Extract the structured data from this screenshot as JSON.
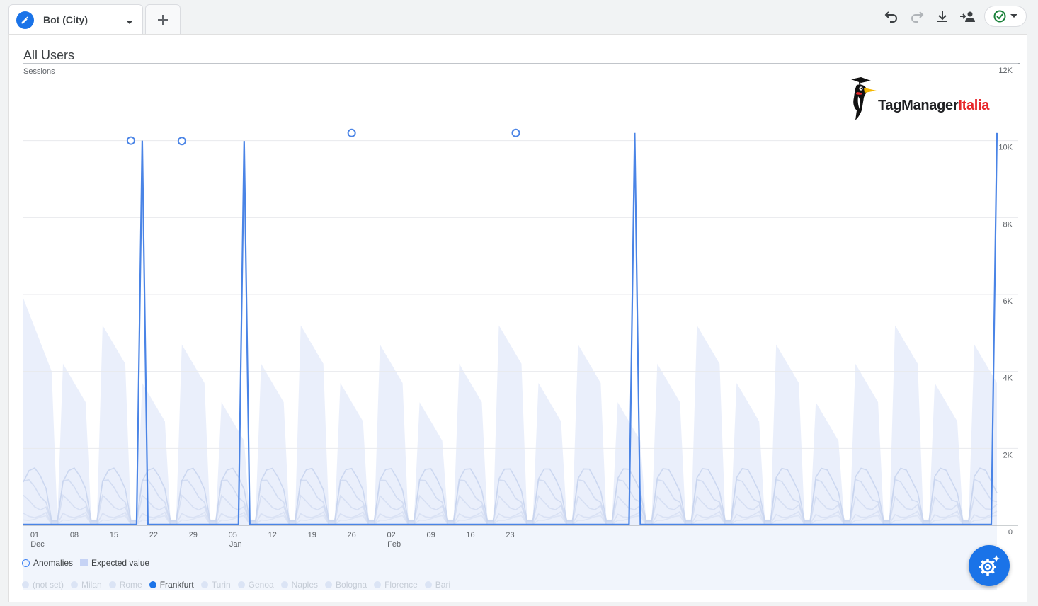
{
  "tab": {
    "title": "Bot (City)"
  },
  "segment": "All Users",
  "metric": "Sessions",
  "brand": {
    "name_black": "TagManager",
    "name_red": "Italia"
  },
  "legend": {
    "anomalies": "Anomalies",
    "expected": "Expected value"
  },
  "cities": [
    {
      "name": "(not set)",
      "active": false
    },
    {
      "name": "Milan",
      "active": false
    },
    {
      "name": "Rome",
      "active": false
    },
    {
      "name": "Frankfurt",
      "active": true
    },
    {
      "name": "Turin",
      "active": false
    },
    {
      "name": "Genoa",
      "active": false
    },
    {
      "name": "Naples",
      "active": false
    },
    {
      "name": "Bologna",
      "active": false
    },
    {
      "name": "Florence",
      "active": false
    },
    {
      "name": "Bari",
      "active": false
    }
  ],
  "colors": {
    "accent": "#1a73e8",
    "series": "#4a84e6",
    "band": "#e6ecfa",
    "faded": "#c8d4ee"
  },
  "chart_data": {
    "type": "line",
    "ylim": [
      0,
      12000
    ],
    "y_ticks": [
      "0",
      "2K",
      "4K",
      "6K",
      "8K",
      "10K",
      "12K"
    ],
    "x_ticks": [
      {
        "day": "01",
        "month": "Dec"
      },
      {
        "day": "08",
        "month": ""
      },
      {
        "day": "15",
        "month": ""
      },
      {
        "day": "22",
        "month": ""
      },
      {
        "day": "29",
        "month": ""
      },
      {
        "day": "05",
        "month": "Jan"
      },
      {
        "day": "12",
        "month": ""
      },
      {
        "day": "19",
        "month": ""
      },
      {
        "day": "26",
        "month": ""
      },
      {
        "day": "02",
        "month": "Feb"
      },
      {
        "day": "09",
        "month": ""
      },
      {
        "day": "16",
        "month": ""
      },
      {
        "day": "23",
        "month": ""
      }
    ],
    "x_start": "2024-11-29",
    "series": [
      {
        "name": "Frankfurt",
        "values": [
          20,
          20,
          20,
          20,
          20,
          20,
          20,
          20,
          20,
          20,
          20,
          20,
          20,
          20,
          20,
          20,
          20,
          20,
          20,
          20,
          20,
          10000,
          20,
          20,
          20,
          20,
          20,
          20,
          20,
          20,
          20,
          20,
          20,
          20,
          20,
          20,
          20,
          20,
          20,
          9990,
          20,
          20,
          20,
          20,
          20,
          20,
          20,
          20,
          20,
          20,
          20,
          20,
          20,
          20,
          20,
          20,
          20,
          20,
          20,
          20,
          20,
          20,
          20,
          20,
          20,
          20,
          20,
          20,
          20,
          20,
          20,
          20,
          20,
          20,
          20,
          20,
          20,
          20,
          20,
          20,
          20,
          20,
          20,
          20,
          20,
          20,
          20,
          20,
          20,
          20,
          20,
          20,
          20,
          20,
          20,
          20,
          20,
          20,
          20,
          20,
          20,
          20,
          20,
          20,
          20,
          20,
          20,
          20,
          10200,
          20,
          20,
          20,
          20,
          20,
          20,
          20,
          20,
          20,
          20,
          20,
          20,
          20,
          20,
          20,
          20,
          20,
          20,
          20,
          20,
          20,
          20,
          20,
          20,
          20,
          20,
          20,
          20,
          20,
          20,
          20,
          20,
          20,
          20,
          20,
          20,
          20,
          20,
          20,
          20,
          20,
          20,
          20,
          20,
          20,
          20,
          20,
          20,
          20,
          20,
          20,
          20,
          20,
          20,
          20,
          20,
          20,
          20,
          20,
          20,
          20,
          20,
          20,
          10200
        ],
        "anomalies": [
          {
            "date": "2024-12-18",
            "value": 10000
          },
          {
            "date": "2024-12-27",
            "value": 9990
          },
          {
            "date": "2025-01-26",
            "value": 10200
          },
          {
            "date": "2025-02-24",
            "value": 10200
          }
        ]
      }
    ]
  }
}
